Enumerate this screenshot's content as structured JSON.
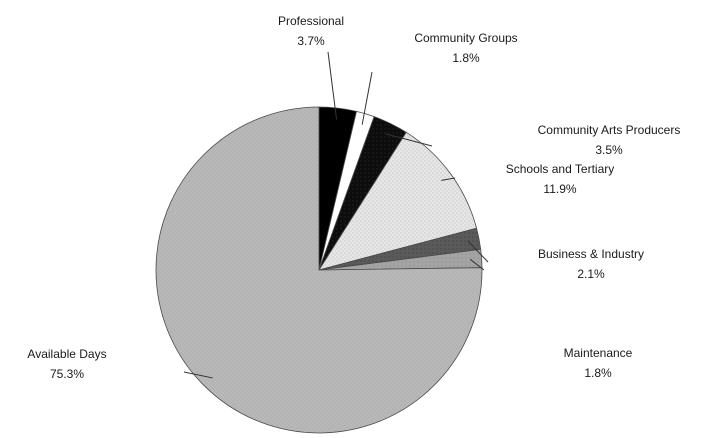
{
  "chart_data": {
    "type": "pie",
    "title": "",
    "slices": [
      {
        "label": "Professional",
        "value": 3.7,
        "value_text": "3.7%",
        "color": "#000000",
        "fill": "pat-black"
      },
      {
        "label": "Community Groups",
        "value": 1.8,
        "value_text": "1.8%",
        "color": "#ffffff",
        "fill": "pat-white"
      },
      {
        "label": "Community Arts Producers",
        "value": 3.5,
        "value_text": "3.5%",
        "color": "#111111",
        "fill": "pat-dark"
      },
      {
        "label": "Schools and Tertiary",
        "value": 11.9,
        "value_text": "11.9%",
        "color": "#dcdcdc",
        "fill": "pat-light"
      },
      {
        "label": "Business & Industry",
        "value": 2.1,
        "value_text": "2.1%",
        "color": "#555555",
        "fill": "pat-mid"
      },
      {
        "label": "Maintenance",
        "value": 1.8,
        "value_text": "1.8%",
        "color": "#a0a0a0",
        "fill": "pat-grey"
      },
      {
        "label": "Available Days",
        "value": 75.3,
        "value_text": "75.3%",
        "color": "#b4b4b4",
        "fill": "pat-avail"
      }
    ],
    "start_angle_deg": 0,
    "direction": "clockwise",
    "legend": "none"
  }
}
